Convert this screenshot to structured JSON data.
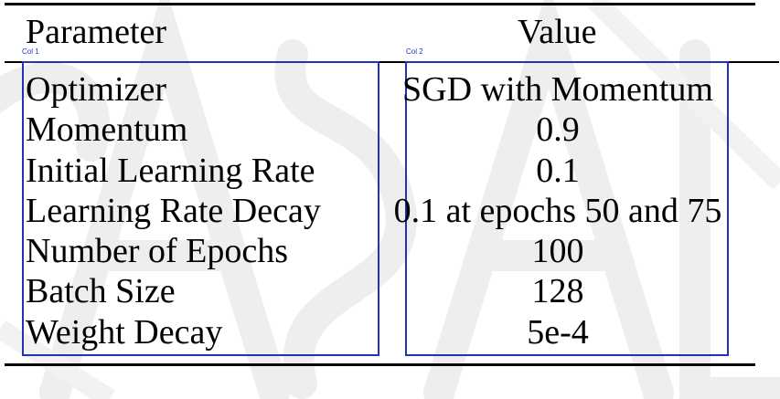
{
  "table": {
    "header": {
      "parameter": "Parameter",
      "value": "Value"
    },
    "column_tags": [
      "Col 1",
      "Col 2"
    ],
    "rows": [
      {
        "parameter": "Optimizer",
        "value": "SGD with Momentum"
      },
      {
        "parameter": "Momentum",
        "value": "0.9"
      },
      {
        "parameter": "Initial Learning Rate",
        "value": "0.1"
      },
      {
        "parameter": "Learning Rate Decay",
        "value": "0.1 at epochs 50 and 75"
      },
      {
        "parameter": "Number of Epochs",
        "value": "100"
      },
      {
        "parameter": "Batch Size",
        "value": "128"
      },
      {
        "parameter": "Weight Decay",
        "value": "5e-4"
      }
    ]
  },
  "colors": {
    "text": "#000000",
    "rule": "#000000",
    "column_box": "#2233bb",
    "watermark": "#eeeeee"
  }
}
